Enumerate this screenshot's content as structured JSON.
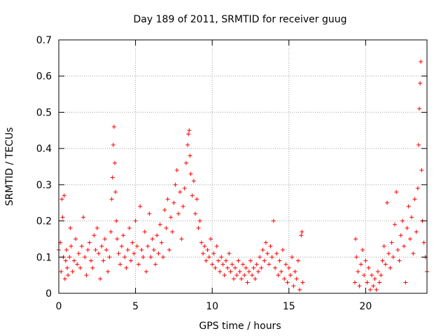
{
  "chart_data": {
    "type": "scatter",
    "title": "Day 189 of 2011, SRMTID for receiver guug",
    "xlabel": "GPS time / hours",
    "ylabel": "SRMTID / TECUs",
    "xlim": [
      0,
      24
    ],
    "ylim": [
      0,
      0.7
    ],
    "xticks": [
      0,
      5,
      10,
      15,
      20
    ],
    "xtick_labels": [
      "0",
      "5",
      "10",
      "15",
      "20"
    ],
    "yticks": [
      0,
      0.1,
      0.2,
      0.3,
      0.4,
      0.5,
      0.6,
      0.7
    ],
    "ytick_labels": [
      "0",
      "0.1",
      "0.2",
      "0.3",
      "0.4",
      "0.5",
      "0.6",
      "0.7"
    ],
    "grid": true,
    "marker": "+",
    "color": "#ff0000",
    "series": [
      {
        "name": "SRMTID",
        "points": [
          [
            0.0,
            0.12
          ],
          [
            0.1,
            0.14
          ],
          [
            0.15,
            0.06
          ],
          [
            0.2,
            0.26
          ],
          [
            0.25,
            0.21
          ],
          [
            0.3,
            0.1
          ],
          [
            0.35,
            0.27
          ],
          [
            0.4,
            0.04
          ],
          [
            0.45,
            0.09
          ],
          [
            0.5,
            0.12
          ],
          [
            0.55,
            0.07
          ],
          [
            0.6,
            0.05
          ],
          [
            0.7,
            0.1
          ],
          [
            0.75,
            0.18
          ],
          [
            0.8,
            0.13
          ],
          [
            0.9,
            0.06
          ],
          [
            1.0,
            0.09
          ],
          [
            1.1,
            0.15
          ],
          [
            1.2,
            0.08
          ],
          [
            1.3,
            0.11
          ],
          [
            1.4,
            0.07
          ],
          [
            1.5,
            0.13
          ],
          [
            1.6,
            0.21
          ],
          [
            1.7,
            0.1
          ],
          [
            1.8,
            0.05
          ],
          [
            1.9,
            0.12
          ],
          [
            2.0,
            0.14
          ],
          [
            2.1,
            0.09
          ],
          [
            2.2,
            0.07
          ],
          [
            2.3,
            0.16
          ],
          [
            2.4,
            0.12
          ],
          [
            2.5,
            0.18
          ],
          [
            2.6,
            0.11
          ],
          [
            2.7,
            0.04
          ],
          [
            2.8,
            0.13
          ],
          [
            2.9,
            0.09
          ],
          [
            3.0,
            0.15
          ],
          [
            3.1,
            0.12
          ],
          [
            3.2,
            0.06
          ],
          [
            3.3,
            0.1
          ],
          [
            3.4,
            0.17
          ],
          [
            3.45,
            0.26
          ],
          [
            3.5,
            0.32
          ],
          [
            3.55,
            0.41
          ],
          [
            3.6,
            0.46
          ],
          [
            3.65,
            0.36
          ],
          [
            3.7,
            0.28
          ],
          [
            3.75,
            0.2
          ],
          [
            3.8,
            0.15
          ],
          [
            3.9,
            0.11
          ],
          [
            4.0,
            0.08
          ],
          [
            4.1,
            0.13
          ],
          [
            4.2,
            0.16
          ],
          [
            4.3,
            0.1
          ],
          [
            4.4,
            0.07
          ],
          [
            4.5,
            0.12
          ],
          [
            4.6,
            0.18
          ],
          [
            4.7,
            0.09
          ],
          [
            4.8,
            0.14
          ],
          [
            4.9,
            0.11
          ],
          [
            5.0,
            0.2
          ],
          [
            5.1,
            0.13
          ],
          [
            5.2,
            0.08
          ],
          [
            5.3,
            0.24
          ],
          [
            5.4,
            0.12
          ],
          [
            5.5,
            0.1
          ],
          [
            5.6,
            0.17
          ],
          [
            5.7,
            0.06
          ],
          [
            5.8,
            0.13
          ],
          [
            5.9,
            0.22
          ],
          [
            6.0,
            0.1
          ],
          [
            6.1,
            0.15
          ],
          [
            6.2,
            0.12
          ],
          [
            6.3,
            0.08
          ],
          [
            6.4,
            0.16
          ],
          [
            6.5,
            0.11
          ],
          [
            6.6,
            0.19
          ],
          [
            6.7,
            0.14
          ],
          [
            6.8,
            0.1
          ],
          [
            6.9,
            0.23
          ],
          [
            7.0,
            0.18
          ],
          [
            7.1,
            0.26
          ],
          [
            7.2,
            0.12
          ],
          [
            7.3,
            0.21
          ],
          [
            7.4,
            0.17
          ],
          [
            7.5,
            0.25
          ],
          [
            7.6,
            0.3
          ],
          [
            7.7,
            0.34
          ],
          [
            7.8,
            0.22
          ],
          [
            7.9,
            0.28
          ],
          [
            8.0,
            0.15
          ],
          [
            8.1,
            0.24
          ],
          [
            8.2,
            0.29
          ],
          [
            8.3,
            0.36
          ],
          [
            8.4,
            0.41
          ],
          [
            8.45,
            0.44
          ],
          [
            8.5,
            0.45
          ],
          [
            8.55,
            0.38
          ],
          [
            8.6,
            0.33
          ],
          [
            8.7,
            0.27
          ],
          [
            8.8,
            0.31
          ],
          [
            8.9,
            0.22
          ],
          [
            9.0,
            0.26
          ],
          [
            9.1,
            0.18
          ],
          [
            9.2,
            0.2
          ],
          [
            9.3,
            0.14
          ],
          [
            9.4,
            0.11
          ],
          [
            9.5,
            0.13
          ],
          [
            9.6,
            0.09
          ],
          [
            9.7,
            0.12
          ],
          [
            9.8,
            0.1
          ],
          [
            9.9,
            0.15
          ],
          [
            10.0,
            0.08
          ],
          [
            10.1,
            0.11
          ],
          [
            10.2,
            0.07
          ],
          [
            10.3,
            0.13
          ],
          [
            10.4,
            0.09
          ],
          [
            10.5,
            0.06
          ],
          [
            10.6,
            0.1
          ],
          [
            10.7,
            0.08
          ],
          [
            10.8,
            0.05
          ],
          [
            10.9,
            0.09
          ],
          [
            11.0,
            0.07
          ],
          [
            11.1,
            0.11
          ],
          [
            11.2,
            0.06
          ],
          [
            11.3,
            0.08
          ],
          [
            11.4,
            0.04
          ],
          [
            11.5,
            0.07
          ],
          [
            11.6,
            0.05
          ],
          [
            11.7,
            0.09
          ],
          [
            11.8,
            0.06
          ],
          [
            11.9,
            0.04
          ],
          [
            12.0,
            0.08
          ],
          [
            12.1,
            0.05
          ],
          [
            12.2,
            0.07
          ],
          [
            12.3,
            0.03
          ],
          [
            12.4,
            0.06
          ],
          [
            12.5,
            0.09
          ],
          [
            12.6,
            0.05
          ],
          [
            12.7,
            0.07
          ],
          [
            12.8,
            0.04
          ],
          [
            12.9,
            0.08
          ],
          [
            13.0,
            0.06
          ],
          [
            13.1,
            0.1
          ],
          [
            13.2,
            0.07
          ],
          [
            13.3,
            0.12
          ],
          [
            13.4,
            0.09
          ],
          [
            13.5,
            0.14
          ],
          [
            13.6,
            0.11
          ],
          [
            13.7,
            0.08
          ],
          [
            13.8,
            0.13
          ],
          [
            13.9,
            0.1
          ],
          [
            14.0,
            0.2
          ],
          [
            14.1,
            0.07
          ],
          [
            14.2,
            0.11
          ],
          [
            14.3,
            0.05
          ],
          [
            14.4,
            0.09
          ],
          [
            14.5,
            0.06
          ],
          [
            14.6,
            0.12
          ],
          [
            14.7,
            0.04
          ],
          [
            14.8,
            0.08
          ],
          [
            14.9,
            0.03
          ],
          [
            15.0,
            0.07
          ],
          [
            15.1,
            0.05
          ],
          [
            15.2,
            0.1
          ],
          [
            15.3,
            0.02
          ],
          [
            15.4,
            0.06
          ],
          [
            15.5,
            0.04
          ],
          [
            15.6,
            0.09
          ],
          [
            15.7,
            0.01
          ],
          [
            15.8,
            0.16
          ],
          [
            15.85,
            0.17
          ],
          [
            15.9,
            0.03
          ],
          [
            19.3,
            0.03
          ],
          [
            19.35,
            0.15
          ],
          [
            19.4,
            0.1
          ],
          [
            19.5,
            0.06
          ],
          [
            19.6,
            0.02
          ],
          [
            19.7,
            0.08
          ],
          [
            19.8,
            0.12
          ],
          [
            19.9,
            0.05
          ],
          [
            20.0,
            0.09
          ],
          [
            20.1,
            0.03
          ],
          [
            20.2,
            0.07
          ],
          [
            20.3,
            0.01
          ],
          [
            20.4,
            0.05
          ],
          [
            20.5,
            0.02
          ],
          [
            20.6,
            0.04
          ],
          [
            20.7,
            0.01
          ],
          [
            20.8,
            0.06
          ],
          [
            20.9,
            0.03
          ],
          [
            21.0,
            0.05
          ],
          [
            21.1,
            0.09
          ],
          [
            21.2,
            0.13
          ],
          [
            21.3,
            0.08
          ],
          [
            21.4,
            0.25
          ],
          [
            21.5,
            0.11
          ],
          [
            21.6,
            0.07
          ],
          [
            21.7,
            0.14
          ],
          [
            21.8,
            0.1
          ],
          [
            21.9,
            0.19
          ],
          [
            22.0,
            0.28
          ],
          [
            22.1,
            0.12
          ],
          [
            22.2,
            0.09
          ],
          [
            22.3,
            0.16
          ],
          [
            22.4,
            0.2
          ],
          [
            22.5,
            0.13
          ],
          [
            22.6,
            0.03
          ],
          [
            22.7,
            0.18
          ],
          [
            22.8,
            0.24
          ],
          [
            22.9,
            0.15
          ],
          [
            23.0,
            0.21
          ],
          [
            23.1,
            0.11
          ],
          [
            23.2,
            0.26
          ],
          [
            23.3,
            0.17
          ],
          [
            23.4,
            0.29
          ],
          [
            23.45,
            0.41
          ],
          [
            23.5,
            0.51
          ],
          [
            23.55,
            0.58
          ],
          [
            23.6,
            0.64
          ],
          [
            23.65,
            0.34
          ],
          [
            23.7,
            0.2
          ],
          [
            23.8,
            0.14
          ],
          [
            23.9,
            0.1
          ],
          [
            24.0,
            0.06
          ]
        ]
      }
    ]
  }
}
